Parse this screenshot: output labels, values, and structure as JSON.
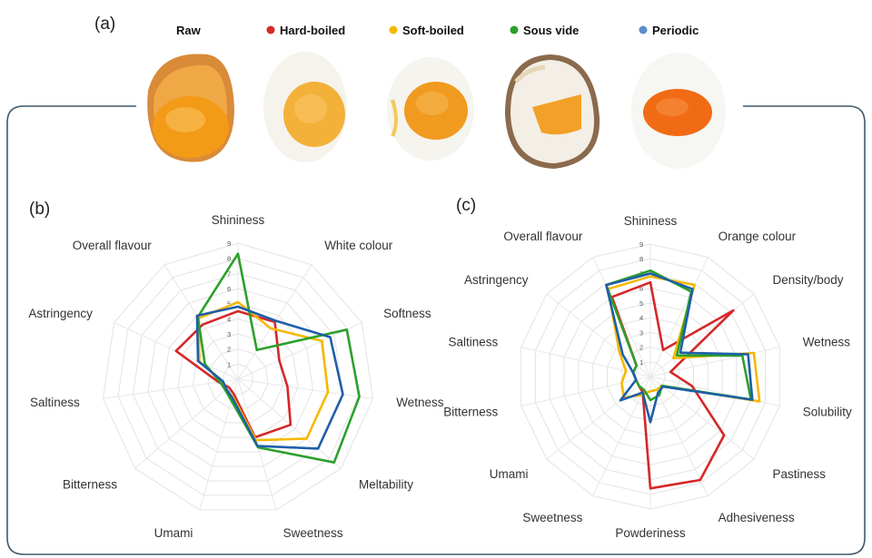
{
  "figure": {
    "panel_a": "(a)",
    "panel_b": "(b)",
    "panel_c": "(c)",
    "legend": [
      {
        "label": "Raw",
        "color": ""
      },
      {
        "label": "Hard-boiled",
        "color": "#d62728"
      },
      {
        "label": "Soft-boiled",
        "color": "#f5b800"
      },
      {
        "label": "Sous vide",
        "color": "#2ca02c"
      },
      {
        "label": "Periodic",
        "color": "#5b8fc9"
      }
    ],
    "eggs": [
      {
        "name": "raw-egg-icon"
      },
      {
        "name": "hard-boiled-egg-icon"
      },
      {
        "name": "soft-boiled-egg-icon"
      },
      {
        "name": "sous-vide-egg-icon"
      },
      {
        "name": "periodic-egg-icon"
      }
    ]
  },
  "chart_data": [
    {
      "type": "radar",
      "panel": "(b)",
      "range": [
        0,
        9
      ],
      "ticks": [
        "1",
        "2",
        "3",
        "4",
        "5",
        "6",
        "7",
        "8",
        "9"
      ],
      "axes": [
        "Shininess",
        "White colour",
        "Softness",
        "Wetness",
        "Meltability",
        "Sweetness",
        "Umami",
        "Bitterness",
        "Saltiness",
        "Astringency",
        "Overall flavour"
      ],
      "series": [
        {
          "name": "Hard-boiled",
          "color": "#d62728",
          "values": [
            4.5,
            4.5,
            3.0,
            3.3,
            4.6,
            4.0,
            1.0,
            0.8,
            1.3,
            4.5,
            4.3
          ]
        },
        {
          "name": "Soft-boiled",
          "color": "#f5b800",
          "values": [
            5.1,
            4.0,
            6.1,
            6.0,
            6.0,
            4.2,
            1.2,
            1.1,
            1.0,
            2.8,
            4.8
          ]
        },
        {
          "name": "Sous vide",
          "color": "#2ca02c",
          "values": [
            8.3,
            2.3,
            7.9,
            8.1,
            8.4,
            4.7,
            1.5,
            1.1,
            1.2,
            2.4,
            4.9
          ]
        },
        {
          "name": "Periodic",
          "color": "#1f5fa8",
          "values": [
            4.8,
            4.6,
            6.7,
            7.0,
            7.0,
            4.6,
            1.3,
            1.0,
            1.0,
            2.9,
            5.0
          ]
        }
      ]
    },
    {
      "type": "radar",
      "panel": "(c)",
      "range": [
        0,
        9
      ],
      "ticks": [
        "1",
        "2",
        "3",
        "4",
        "5",
        "6",
        "7",
        "8",
        "9"
      ],
      "axes": [
        "Shininess",
        "Orange colour",
        "Density/body",
        "Wetness",
        "Solubility",
        "Pastiness",
        "Adhesiveness",
        "Powderiness",
        "Sweetness",
        "Umami",
        "Bitterness",
        "Saltiness",
        "Astringency",
        "Overall flavour"
      ],
      "series": [
        {
          "name": "Hard-boiled",
          "color": "#d62728",
          "values": [
            6.4,
            2.0,
            7.2,
            1.4,
            2.9,
            6.4,
            7.8,
            7.6,
            1.2,
            1.0,
            1.0,
            1.2,
            1.2,
            6.0
          ]
        },
        {
          "name": "Soft-boiled",
          "color": "#f5b800",
          "values": [
            6.8,
            6.9,
            2.0,
            7.2,
            7.6,
            1.0,
            1.0,
            1.0,
            1.4,
            2.3,
            2.0,
            1.7,
            2.7,
            6.6
          ]
        },
        {
          "name": "Sous vide",
          "color": "#2ca02c",
          "values": [
            7.2,
            6.4,
            2.3,
            6.4,
            7.0,
            1.0,
            1.4,
            1.6,
            1.0,
            1.0,
            1.0,
            1.2,
            1.2,
            6.9
          ]
        },
        {
          "name": "Periodic",
          "color": "#1f5fa8",
          "values": [
            7.0,
            6.6,
            2.6,
            6.8,
            7.1,
            1.1,
            1.2,
            3.1,
            1.2,
            2.6,
            1.0,
            1.2,
            2.4,
            6.9
          ]
        }
      ]
    }
  ]
}
